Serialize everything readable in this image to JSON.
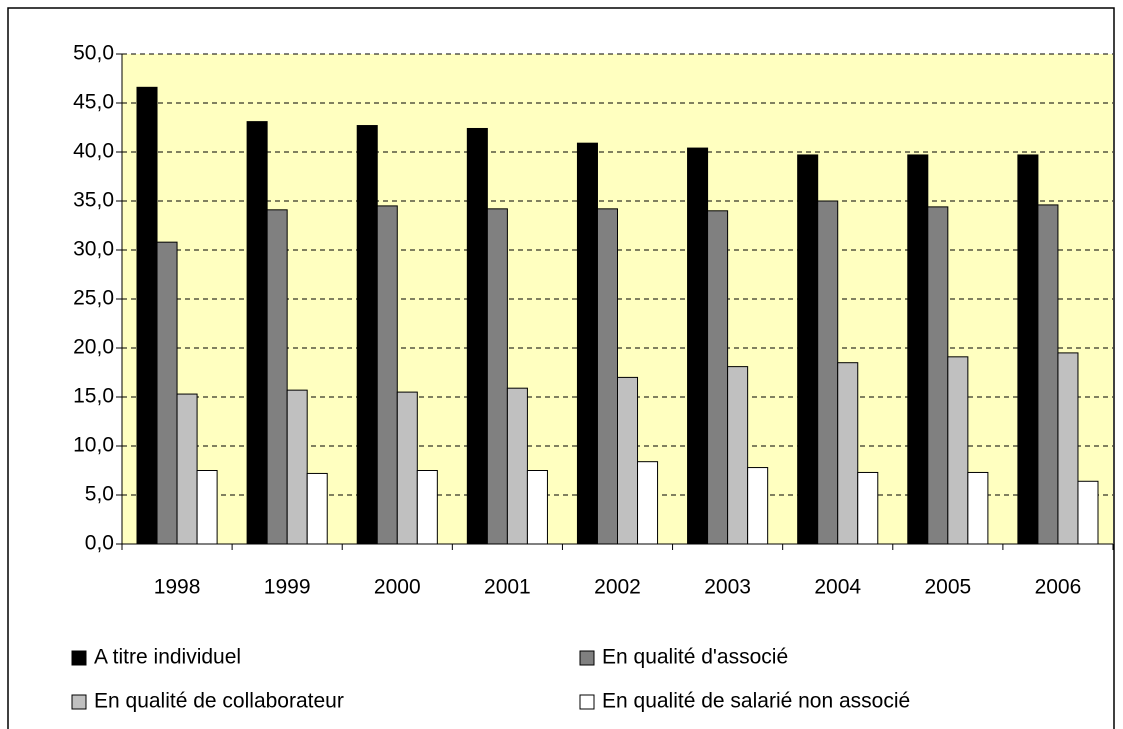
{
  "chart_data": {
    "type": "bar",
    "categories": [
      "1998",
      "1999",
      "2000",
      "2001",
      "2002",
      "2003",
      "2004",
      "2005",
      "2006"
    ],
    "series": [
      {
        "name": "A titre individuel",
        "color": "#000000",
        "values": [
          46.6,
          43.1,
          42.7,
          42.4,
          40.9,
          40.4,
          39.7,
          39.7,
          39.7
        ]
      },
      {
        "name": "En qualité d'associé",
        "color": "#808080",
        "values": [
          30.8,
          34.1,
          34.5,
          34.2,
          34.2,
          34.0,
          35.0,
          34.4,
          34.6
        ]
      },
      {
        "name": "En qualité de collaborateur",
        "color": "#c0c0c0",
        "values": [
          15.3,
          15.7,
          15.5,
          15.9,
          17.0,
          18.1,
          18.5,
          19.1,
          19.5
        ]
      },
      {
        "name": "En qualité de salarié non associé",
        "color": "#ffffff",
        "values": [
          7.5,
          7.2,
          7.5,
          7.5,
          8.4,
          7.8,
          7.3,
          7.3,
          6.4
        ]
      }
    ],
    "ylim": [
      0,
      50
    ],
    "yticks": [
      {
        "value": 0,
        "label": "0,0"
      },
      {
        "value": 5,
        "label": "5,0"
      },
      {
        "value": 10,
        "label": "10,0"
      },
      {
        "value": 15,
        "label": "15,0"
      },
      {
        "value": 20,
        "label": "20,0"
      },
      {
        "value": 25,
        "label": "25,0"
      },
      {
        "value": 30,
        "label": "30,0"
      },
      {
        "value": 35,
        "label": "35,0"
      },
      {
        "value": 40,
        "label": "40,0"
      },
      {
        "value": 45,
        "label": "45,0"
      },
      {
        "value": 50,
        "label": "50,0"
      }
    ],
    "grid": true,
    "plot_background": "#ffffc0",
    "legend": "bottom"
  }
}
